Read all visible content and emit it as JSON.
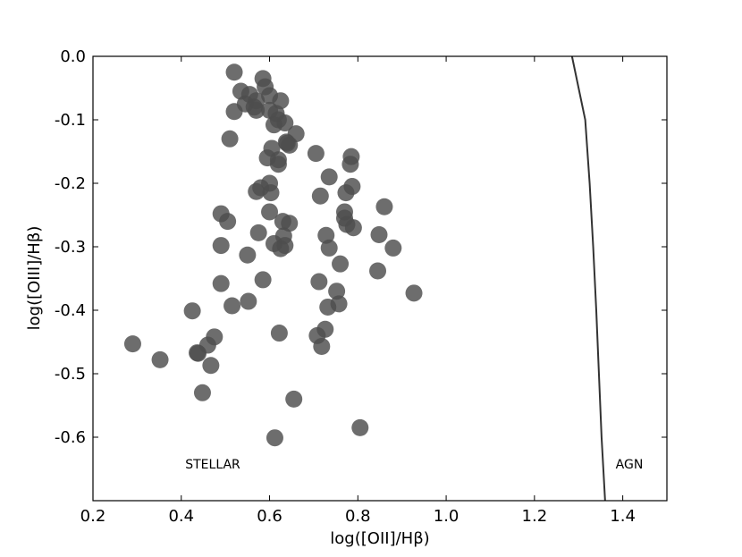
{
  "chart_data": {
    "type": "scatter",
    "xlabel": "log([OII]/Hβ)",
    "ylabel": "log([OIII]/Hβ)",
    "xlim": [
      0.2,
      1.5
    ],
    "ylim": [
      -0.7,
      0.0
    ],
    "x_ticks": [
      "0.2",
      "0.4",
      "0.6",
      "0.8",
      "1.0",
      "1.2",
      "1.4"
    ],
    "y_ticks": [
      "0.0",
      "-0.1",
      "-0.2",
      "-0.3",
      "-0.4",
      "-0.5",
      "-0.6"
    ],
    "grid": false,
    "marker_color": "#4d4d4d",
    "line_color": "#333333",
    "region_labels": {
      "stellar": "STELLAR",
      "agn": "AGN"
    },
    "points": [
      {
        "x": 0.52,
        "y": -0.025
      },
      {
        "x": 0.585,
        "y": -0.035
      },
      {
        "x": 0.535,
        "y": -0.055
      },
      {
        "x": 0.555,
        "y": -0.06
      },
      {
        "x": 0.59,
        "y": -0.048
      },
      {
        "x": 0.6,
        "y": -0.062
      },
      {
        "x": 0.57,
        "y": -0.07
      },
      {
        "x": 0.625,
        "y": -0.07
      },
      {
        "x": 0.545,
        "y": -0.075
      },
      {
        "x": 0.565,
        "y": -0.08
      },
      {
        "x": 0.57,
        "y": -0.085
      },
      {
        "x": 0.52,
        "y": -0.087
      },
      {
        "x": 0.6,
        "y": -0.085
      },
      {
        "x": 0.615,
        "y": -0.09
      },
      {
        "x": 0.62,
        "y": -0.1
      },
      {
        "x": 0.635,
        "y": -0.105
      },
      {
        "x": 0.61,
        "y": -0.108
      },
      {
        "x": 0.66,
        "y": -0.122
      },
      {
        "x": 0.51,
        "y": -0.13
      },
      {
        "x": 0.638,
        "y": -0.135
      },
      {
        "x": 0.645,
        "y": -0.14
      },
      {
        "x": 0.64,
        "y": -0.137
      },
      {
        "x": 0.605,
        "y": -0.145
      },
      {
        "x": 0.705,
        "y": -0.153
      },
      {
        "x": 0.785,
        "y": -0.158
      },
      {
        "x": 0.595,
        "y": -0.16
      },
      {
        "x": 0.62,
        "y": -0.163
      },
      {
        "x": 0.62,
        "y": -0.17
      },
      {
        "x": 0.783,
        "y": -0.17
      },
      {
        "x": 0.735,
        "y": -0.19
      },
      {
        "x": 0.6,
        "y": -0.2
      },
      {
        "x": 0.58,
        "y": -0.207
      },
      {
        "x": 0.787,
        "y": -0.205
      },
      {
        "x": 0.57,
        "y": -0.213
      },
      {
        "x": 0.603,
        "y": -0.215
      },
      {
        "x": 0.773,
        "y": -0.215
      },
      {
        "x": 0.715,
        "y": -0.22
      },
      {
        "x": 0.86,
        "y": -0.237
      },
      {
        "x": 0.6,
        "y": -0.245
      },
      {
        "x": 0.77,
        "y": -0.245
      },
      {
        "x": 0.49,
        "y": -0.248
      },
      {
        "x": 0.505,
        "y": -0.26
      },
      {
        "x": 0.63,
        "y": -0.26
      },
      {
        "x": 0.77,
        "y": -0.255
      },
      {
        "x": 0.645,
        "y": -0.263
      },
      {
        "x": 0.775,
        "y": -0.265
      },
      {
        "x": 0.79,
        "y": -0.27
      },
      {
        "x": 0.575,
        "y": -0.278
      },
      {
        "x": 0.728,
        "y": -0.282
      },
      {
        "x": 0.632,
        "y": -0.283
      },
      {
        "x": 0.848,
        "y": -0.281
      },
      {
        "x": 0.61,
        "y": -0.295
      },
      {
        "x": 0.49,
        "y": -0.298
      },
      {
        "x": 0.635,
        "y": -0.298
      },
      {
        "x": 0.735,
        "y": -0.302
      },
      {
        "x": 0.625,
        "y": -0.303
      },
      {
        "x": 0.88,
        "y": -0.302
      },
      {
        "x": 0.55,
        "y": -0.313
      },
      {
        "x": 0.76,
        "y": -0.327
      },
      {
        "x": 0.845,
        "y": -0.338
      },
      {
        "x": 0.585,
        "y": -0.352
      },
      {
        "x": 0.49,
        "y": -0.358
      },
      {
        "x": 0.712,
        "y": -0.355
      },
      {
        "x": 0.752,
        "y": -0.37
      },
      {
        "x": 0.927,
        "y": -0.373
      },
      {
        "x": 0.552,
        "y": -0.386
      },
      {
        "x": 0.757,
        "y": -0.39
      },
      {
        "x": 0.515,
        "y": -0.393
      },
      {
        "x": 0.732,
        "y": -0.395
      },
      {
        "x": 0.425,
        "y": -0.401
      },
      {
        "x": 0.726,
        "y": -0.43
      },
      {
        "x": 0.622,
        "y": -0.436
      },
      {
        "x": 0.708,
        "y": -0.44
      },
      {
        "x": 0.475,
        "y": -0.442
      },
      {
        "x": 0.29,
        "y": -0.453
      },
      {
        "x": 0.46,
        "y": -0.455
      },
      {
        "x": 0.718,
        "y": -0.457
      },
      {
        "x": 0.438,
        "y": -0.468
      },
      {
        "x": 0.436,
        "y": -0.467
      },
      {
        "x": 0.352,
        "y": -0.478
      },
      {
        "x": 0.467,
        "y": -0.487
      },
      {
        "x": 0.448,
        "y": -0.53
      },
      {
        "x": 0.655,
        "y": -0.54
      },
      {
        "x": 0.805,
        "y": -0.585
      },
      {
        "x": 0.612,
        "y": -0.601
      }
    ],
    "agn_line": [
      {
        "x": 1.285,
        "y": 0.0
      },
      {
        "x": 1.3,
        "y": -0.05
      },
      {
        "x": 1.315,
        "y": -0.1
      },
      {
        "x": 1.325,
        "y": -0.2
      },
      {
        "x": 1.333,
        "y": -0.3
      },
      {
        "x": 1.34,
        "y": -0.4
      },
      {
        "x": 1.346,
        "y": -0.5
      },
      {
        "x": 1.352,
        "y": -0.6
      },
      {
        "x": 1.36,
        "y": -0.7
      }
    ]
  }
}
